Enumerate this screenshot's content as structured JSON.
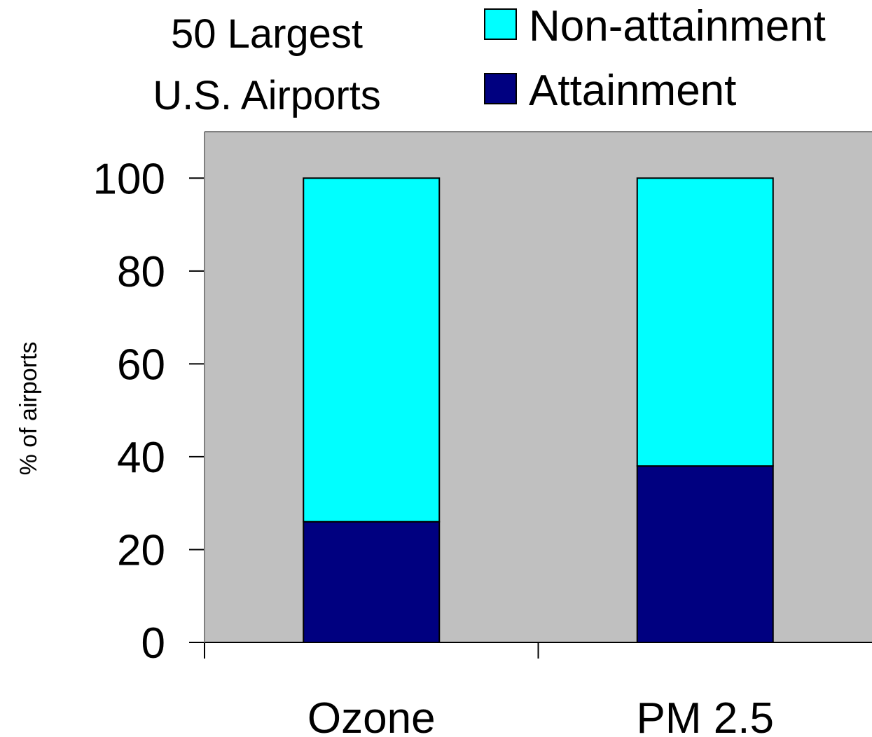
{
  "chart_data": {
    "type": "bar",
    "stacked": true,
    "title_lines": [
      "50 Largest",
      "U.S. Airports"
    ],
    "xlabel": "",
    "ylabel": "% of airports",
    "categories": [
      "Ozone",
      "PM 2.5"
    ],
    "series": [
      {
        "name": "Attainment",
        "values": [
          26,
          38
        ],
        "color": "#000080"
      },
      {
        "name": "Non-attainment",
        "values": [
          74,
          62
        ],
        "color": "#00FFFF"
      }
    ],
    "legend_order": [
      "Non-attainment",
      "Attainment"
    ],
    "ylim": [
      0,
      110
    ],
    "yticks": [
      "0",
      "20",
      "40",
      "60",
      "80",
      "100"
    ],
    "ytick_values": [
      0,
      20,
      40,
      60,
      80,
      100
    ],
    "grid": false,
    "legend_position": "top-right",
    "plot_background": "#C0C0C0"
  }
}
